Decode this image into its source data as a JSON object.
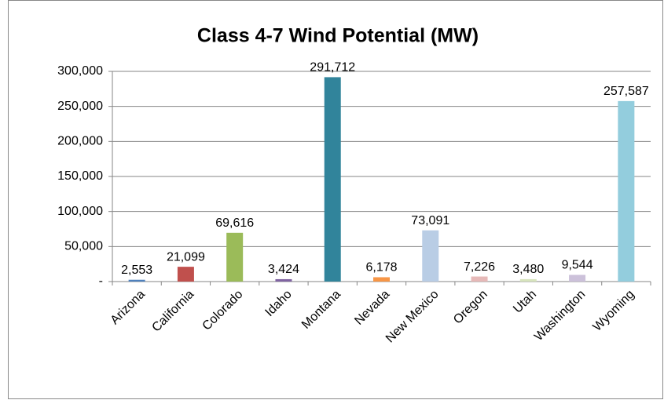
{
  "chart_data": {
    "type": "bar",
    "title": "Class 4-7 Wind Potential (MW)",
    "categories": [
      "Arizona",
      "California",
      "Colorado",
      "Idaho",
      "Montana",
      "Nevada",
      "New Mexico",
      "Oregon",
      "Utah",
      "Washington",
      "Wyoming"
    ],
    "values": [
      2553,
      21099,
      69616,
      3424,
      291712,
      6178,
      73091,
      7226,
      3480,
      9544,
      257587
    ],
    "value_labels": [
      "2,553",
      "21,099",
      "69,616",
      "3,424",
      "291,712",
      "6,178",
      "73,091",
      "7,226",
      "3,480",
      "9,544",
      "257,587"
    ],
    "colors": [
      "#4f81bd",
      "#c0504d",
      "#9bbb59",
      "#8064a2",
      "#31849b",
      "#f79646",
      "#b9cde5",
      "#e6b9b8",
      "#d7e4bd",
      "#ccc1da",
      "#93cddd"
    ],
    "ylim": [
      0,
      300000
    ],
    "yticks": [
      {
        "value": 0,
        "label": "-"
      },
      {
        "value": 50000,
        "label": "50,000"
      },
      {
        "value": 100000,
        "label": "100,000"
      },
      {
        "value": 150000,
        "label": "150,000"
      },
      {
        "value": 200000,
        "label": "200,000"
      },
      {
        "value": 250000,
        "label": "250,000"
      },
      {
        "value": 300000,
        "label": "300,000"
      }
    ],
    "grid": true
  }
}
